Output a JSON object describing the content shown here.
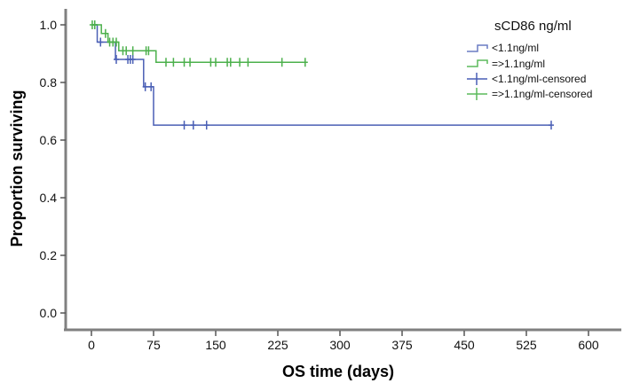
{
  "chart_data": {
    "type": "line",
    "subtype": "kaplan-meier",
    "xlabel": "OS time (days)",
    "ylabel": "Proportion surviving",
    "xlim": [
      -30,
      640
    ],
    "ylim": [
      -0.06,
      1.05
    ],
    "xticks": [
      0,
      75,
      150,
      225,
      300,
      375,
      450,
      525,
      600
    ],
    "yticks": [
      "0.0",
      "0.2",
      "0.4",
      "0.6",
      "0.8",
      "1.0"
    ],
    "grid": false,
    "legend": {
      "title": "sCD86 ng/ml",
      "placement": "top-right",
      "entries": [
        "<1.1ng/ml",
        "=>1.1ng/ml",
        "<1.1ng/ml-censored",
        "=>1.1ng/ml-censored"
      ]
    },
    "series": [
      {
        "name": "<1.1ng/ml",
        "color": "#4a5fb5",
        "steps": [
          [
            0,
            1.0
          ],
          [
            7,
            0.94
          ],
          [
            29,
            0.88
          ],
          [
            63,
            0.785
          ],
          [
            75,
            0.652
          ],
          [
            555,
            0.652
          ]
        ],
        "censored": [
          [
            4,
            1.0
          ],
          [
            11,
            0.94
          ],
          [
            30,
            0.88
          ],
          [
            44,
            0.88
          ],
          [
            47,
            0.88
          ],
          [
            50,
            0.88
          ],
          [
            65,
            0.785
          ],
          [
            72,
            0.785
          ],
          [
            112,
            0.652
          ],
          [
            123,
            0.652
          ],
          [
            139,
            0.652
          ],
          [
            555,
            0.652
          ]
        ]
      },
      {
        "name": "=>1.1ng/ml",
        "color": "#4cb04c",
        "steps": [
          [
            0,
            1.0
          ],
          [
            12,
            0.97
          ],
          [
            20,
            0.94
          ],
          [
            33,
            0.91
          ],
          [
            78,
            0.87
          ],
          [
            258,
            0.87
          ]
        ],
        "censored": [
          [
            1,
            1.0
          ],
          [
            4,
            1.0
          ],
          [
            17,
            0.97
          ],
          [
            22,
            0.94
          ],
          [
            26,
            0.94
          ],
          [
            30,
            0.94
          ],
          [
            38,
            0.91
          ],
          [
            42,
            0.91
          ],
          [
            50,
            0.91
          ],
          [
            66,
            0.91
          ],
          [
            69,
            0.91
          ],
          [
            90,
            0.87
          ],
          [
            99,
            0.87
          ],
          [
            112,
            0.87
          ],
          [
            119,
            0.87
          ],
          [
            144,
            0.87
          ],
          [
            150,
            0.87
          ],
          [
            164,
            0.87
          ],
          [
            168,
            0.87
          ],
          [
            179,
            0.87
          ],
          [
            189,
            0.87
          ],
          [
            230,
            0.87
          ],
          [
            258,
            0.87
          ]
        ]
      }
    ]
  }
}
